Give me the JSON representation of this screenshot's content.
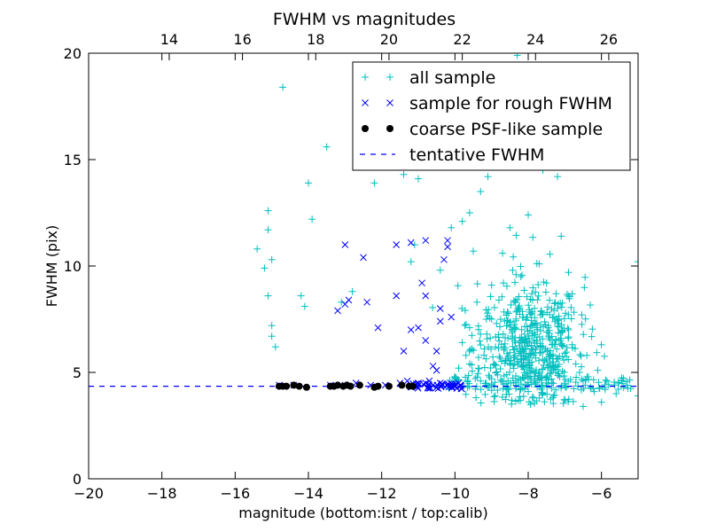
{
  "chart_data": {
    "type": "scatter",
    "title": "FWHM vs magnitudes",
    "xlabel": "magnitude (bottom:isnt / top:calib)",
    "ylabel": "FWHM (pix)",
    "xlim": [
      -20,
      -5
    ],
    "ylim": [
      0,
      20
    ],
    "x_ticks": [
      -20,
      -18,
      -16,
      -14,
      -12,
      -10,
      -8,
      -6
    ],
    "x_tick_labels": [
      "−20",
      "−18",
      "−16",
      "−14",
      "−12",
      "−10",
      "−8",
      "−6"
    ],
    "y_ticks": [
      0,
      5,
      10,
      15,
      20
    ],
    "y_tick_labels": [
      "0",
      "5",
      "10",
      "15",
      "20"
    ],
    "top_axis": {
      "label_note": "calib",
      "ticks": [
        14,
        16,
        18,
        20,
        22,
        24,
        26
      ],
      "tick_labels": [
        "14",
        "16",
        "18",
        "20",
        "22",
        "24",
        "26"
      ],
      "instrumental_at_14": -17.8,
      "units_per_instrumental": 1.0
    },
    "grid": false,
    "legend_position": "top-right",
    "series": [
      {
        "name": "all sample",
        "marker": "plus",
        "color": "#00bfbf",
        "points": [
          [
            -14.7,
            18.4
          ],
          [
            -13.5,
            15.6
          ],
          [
            -14.0,
            13.9
          ],
          [
            -13.9,
            12.2
          ],
          [
            -12.2,
            13.9
          ],
          [
            -11.4,
            14.3
          ],
          [
            -11.0,
            14.1
          ],
          [
            -15.4,
            10.8
          ],
          [
            -15.1,
            12.6
          ],
          [
            -15.1,
            11.7
          ],
          [
            -15.2,
            9.9
          ],
          [
            -15.0,
            10.3
          ],
          [
            -15.1,
            8.6
          ],
          [
            -15.0,
            7.2
          ],
          [
            -15.0,
            6.7
          ],
          [
            -14.9,
            6.2
          ],
          [
            -14.2,
            8.6
          ],
          [
            -14.1,
            8.1
          ],
          [
            -13.1,
            8.3
          ],
          [
            -12.8,
            8.8
          ],
          [
            -11.2,
            10.2
          ],
          [
            -11.1,
            11.0
          ],
          [
            -10.4,
            9.8
          ],
          [
            -10.1,
            11.8
          ],
          [
            -9.8,
            12.1
          ],
          [
            -9.6,
            12.5
          ],
          [
            -9.5,
            10.7
          ],
          [
            -9.3,
            13.5
          ],
          [
            -9.1,
            14.2
          ],
          [
            -8.9,
            16.4
          ],
          [
            -8.8,
            15.0
          ],
          [
            -8.6,
            14.7
          ],
          [
            -8.3,
            19.9
          ],
          [
            -8.2,
            16.5
          ],
          [
            -7.9,
            14.9
          ],
          [
            -7.6,
            14.5
          ],
          [
            -7.2,
            14.2
          ],
          [
            -7.1,
            11.4
          ],
          [
            -6.9,
            9.7
          ],
          [
            -5.0,
            10.2
          ],
          [
            -5.0,
            3.9
          ],
          [
            -9.8,
            6.4
          ],
          [
            -9.7,
            5.8
          ],
          [
            -9.9,
            5.2
          ],
          [
            -10.0,
            4.7
          ],
          [
            -9.6,
            7.1
          ],
          [
            -9.4,
            8.3
          ],
          [
            -9.2,
            6.1
          ],
          [
            -9.0,
            9.1
          ],
          [
            -8.8,
            8.4
          ],
          [
            -8.7,
            10.6
          ],
          [
            -8.5,
            11.8
          ],
          [
            -8.4,
            5.7
          ],
          [
            -8.3,
            7.9
          ],
          [
            -8.2,
            9.5
          ],
          [
            -8.1,
            6.8
          ],
          [
            -8.0,
            12.4
          ],
          [
            -7.9,
            8.7
          ],
          [
            -7.8,
            7.3
          ],
          [
            -7.7,
            10.1
          ],
          [
            -7.6,
            6.2
          ],
          [
            -7.5,
            9.2
          ],
          [
            -7.4,
            5.5
          ],
          [
            -7.3,
            7.6
          ],
          [
            -7.2,
            8.0
          ],
          [
            -7.1,
            6.6
          ],
          [
            -7.0,
            5.9
          ],
          [
            -6.9,
            7.0
          ],
          [
            -6.8,
            6.3
          ],
          [
            -6.7,
            5.4
          ],
          [
            -6.6,
            5.0
          ],
          [
            -6.5,
            4.6
          ],
          [
            -6.4,
            5.8
          ],
          [
            -6.3,
            4.3
          ],
          [
            -6.2,
            4.1
          ],
          [
            -6.1,
            5.1
          ],
          [
            -5.9,
            4.2
          ],
          [
            -5.6,
            4.0
          ],
          [
            -5.3,
            4.4
          ],
          [
            -6.0,
            3.6
          ],
          [
            -6.5,
            3.4
          ],
          [
            -7.0,
            3.7
          ],
          [
            -7.3,
            3.9
          ],
          [
            -7.7,
            3.8
          ],
          [
            -8.0,
            4.1
          ],
          [
            -8.6,
            4.2
          ],
          [
            -9.0,
            4.4
          ],
          [
            -9.3,
            4.6
          ],
          [
            -8.9,
            3.9
          ],
          [
            -8.4,
            4.5
          ]
        ]
      },
      {
        "name": "sample for rough FWHM",
        "marker": "x",
        "color": "#0000ff",
        "points": [
          [
            -13.0,
            11.0
          ],
          [
            -12.5,
            10.4
          ],
          [
            -11.6,
            11.0
          ],
          [
            -11.2,
            11.1
          ],
          [
            -10.8,
            11.2
          ],
          [
            -10.2,
            11.2
          ],
          [
            -10.2,
            10.9
          ],
          [
            -10.3,
            10.3
          ],
          [
            -10.9,
            9.2
          ],
          [
            -10.8,
            8.6
          ],
          [
            -11.6,
            8.6
          ],
          [
            -12.9,
            8.4
          ],
          [
            -13.0,
            8.2
          ],
          [
            -13.2,
            7.9
          ],
          [
            -12.4,
            8.3
          ],
          [
            -12.1,
            7.1
          ],
          [
            -11.2,
            7.0
          ],
          [
            -11.0,
            7.1
          ],
          [
            -10.8,
            6.5
          ],
          [
            -10.5,
            6.0
          ],
          [
            -10.4,
            7.4
          ],
          [
            -10.4,
            8.0
          ],
          [
            -10.1,
            7.6
          ],
          [
            -11.4,
            6.0
          ],
          [
            -10.6,
            5.3
          ],
          [
            -10.5,
            5.1
          ],
          [
            -14.8,
            4.4
          ],
          [
            -14.4,
            4.4
          ],
          [
            -13.4,
            4.4
          ],
          [
            -13.0,
            4.4
          ],
          [
            -12.7,
            4.5
          ],
          [
            -12.3,
            4.4
          ],
          [
            -11.9,
            4.4
          ],
          [
            -11.5,
            4.5
          ],
          [
            -11.2,
            4.4
          ],
          [
            -11.0,
            4.5
          ],
          [
            -10.8,
            4.5
          ],
          [
            -10.6,
            4.4
          ],
          [
            -10.4,
            4.5
          ],
          [
            -10.2,
            4.4
          ],
          [
            -10.0,
            4.4
          ],
          [
            -9.9,
            4.5
          ],
          [
            -10.7,
            4.6
          ],
          [
            -11.3,
            4.6
          ]
        ]
      },
      {
        "name": "coarse PSF-like sample",
        "marker": "dot",
        "color": "#000000",
        "points": [
          [
            -14.8,
            4.35
          ],
          [
            -14.7,
            4.35
          ],
          [
            -14.6,
            4.35
          ],
          [
            -14.4,
            4.4
          ],
          [
            -14.25,
            4.35
          ],
          [
            -14.05,
            4.3
          ],
          [
            -13.4,
            4.35
          ],
          [
            -13.3,
            4.35
          ],
          [
            -13.2,
            4.4
          ],
          [
            -13.05,
            4.35
          ],
          [
            -12.95,
            4.4
          ],
          [
            -12.85,
            4.35
          ],
          [
            -12.6,
            4.4
          ],
          [
            -12.2,
            4.3
          ],
          [
            -12.1,
            4.35
          ],
          [
            -11.8,
            4.35
          ],
          [
            -11.45,
            4.4
          ],
          [
            -11.25,
            4.35
          ],
          [
            -11.15,
            4.35
          ]
        ]
      },
      {
        "name": "tentative FWHM",
        "marker": "dashed-line",
        "color": "#0000ff",
        "value": 4.35
      }
    ],
    "dense_cloud": {
      "series": "all sample",
      "center_x": -8.0,
      "center_y": 6.2
    }
  }
}
